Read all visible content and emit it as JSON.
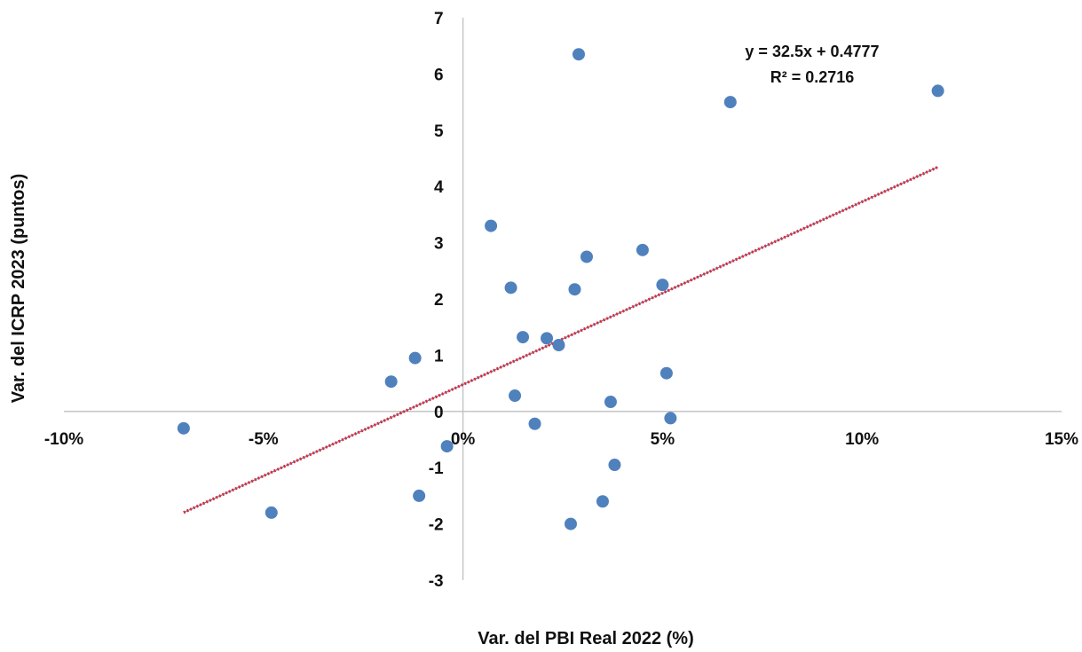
{
  "chart_data": {
    "type": "scatter",
    "xlabel": "Var. del PBI Real 2022  (%)",
    "ylabel": "Var. del ICRP 2023 (puntos)",
    "xlim": [
      -0.1,
      0.15
    ],
    "ylim": [
      -3,
      7
    ],
    "x_ticks": [
      -0.1,
      -0.05,
      0,
      0.05,
      0.1,
      0.15
    ],
    "x_tick_labels": [
      "-10%",
      "-5%",
      "0%",
      "5%",
      "10%",
      "15%"
    ],
    "y_ticks": [
      -3,
      -2,
      -1,
      0,
      1,
      2,
      3,
      4,
      5,
      6,
      7
    ],
    "y_tick_labels": [
      "-3",
      "-2",
      "-1",
      "0",
      "1",
      "2",
      "3",
      "4",
      "5",
      "6",
      "7"
    ],
    "grid": false,
    "series": [
      {
        "marker_color": "#4f81bd",
        "points": [
          {
            "x": -0.07,
            "y": -0.3
          },
          {
            "x": -0.048,
            "y": -1.8
          },
          {
            "x": -0.018,
            "y": 0.53
          },
          {
            "x": -0.012,
            "y": 0.95
          },
          {
            "x": -0.011,
            "y": -1.5
          },
          {
            "x": -0.004,
            "y": -0.62
          },
          {
            "x": 0.007,
            "y": 3.3
          },
          {
            "x": 0.012,
            "y": 2.2
          },
          {
            "x": 0.013,
            "y": 0.28
          },
          {
            "x": 0.015,
            "y": 1.32
          },
          {
            "x": 0.018,
            "y": -0.22
          },
          {
            "x": 0.021,
            "y": 1.3
          },
          {
            "x": 0.024,
            "y": 1.18
          },
          {
            "x": 0.027,
            "y": -2.0
          },
          {
            "x": 0.028,
            "y": 2.17
          },
          {
            "x": 0.029,
            "y": 6.35
          },
          {
            "x": 0.031,
            "y": 2.75
          },
          {
            "x": 0.035,
            "y": -1.6
          },
          {
            "x": 0.037,
            "y": 0.17
          },
          {
            "x": 0.038,
            "y": -0.95
          },
          {
            "x": 0.045,
            "y": 2.87
          },
          {
            "x": 0.05,
            "y": 2.25
          },
          {
            "x": 0.051,
            "y": 0.68
          },
          {
            "x": 0.052,
            "y": -0.12
          },
          {
            "x": 0.067,
            "y": 5.5
          },
          {
            "x": 0.119,
            "y": 5.7
          }
        ]
      }
    ],
    "trendline": {
      "type": "linear",
      "slope": 32.5,
      "intercept": 0.4777,
      "x_range": [
        -0.07,
        0.119
      ],
      "color_outer": "#e8252b",
      "color_inner": "#4f81bd",
      "equation_text": "y = 32.5x + 0.4777",
      "r2_text": "R² = 0.2716"
    }
  }
}
